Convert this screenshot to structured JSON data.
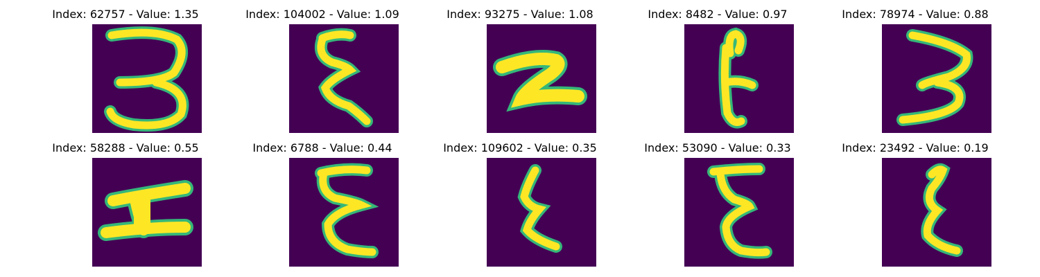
{
  "colors": {
    "background": "#440154",
    "foreground": "#fde725",
    "edge": "#35b779",
    "mid": "#21918c"
  },
  "panels": [
    {
      "title": "Index: 62757 - Value: 1.35",
      "glyph": "3"
    },
    {
      "title": "Index: 104002 - Value: 1.09",
      "glyph": "ε"
    },
    {
      "title": "Index: 93275 - Value: 1.08",
      "glyph": "z"
    },
    {
      "title": "Index: 8482 - Value: 0.97",
      "glyph": "E"
    },
    {
      "title": "Index: 78974 - Value: 0.88",
      "glyph": "3"
    },
    {
      "title": "Index: 58288 - Value: 0.55",
      "glyph": "H"
    },
    {
      "title": "Index: 6788 - Value: 0.44",
      "glyph": "ε"
    },
    {
      "title": "Index: 109602 - Value: 0.35",
      "glyph": "ε"
    },
    {
      "title": "Index: 53090 - Value: 0.33",
      "glyph": "ε"
    },
    {
      "title": "Index: 23492 - Value: 0.19",
      "glyph": "ε"
    }
  ]
}
